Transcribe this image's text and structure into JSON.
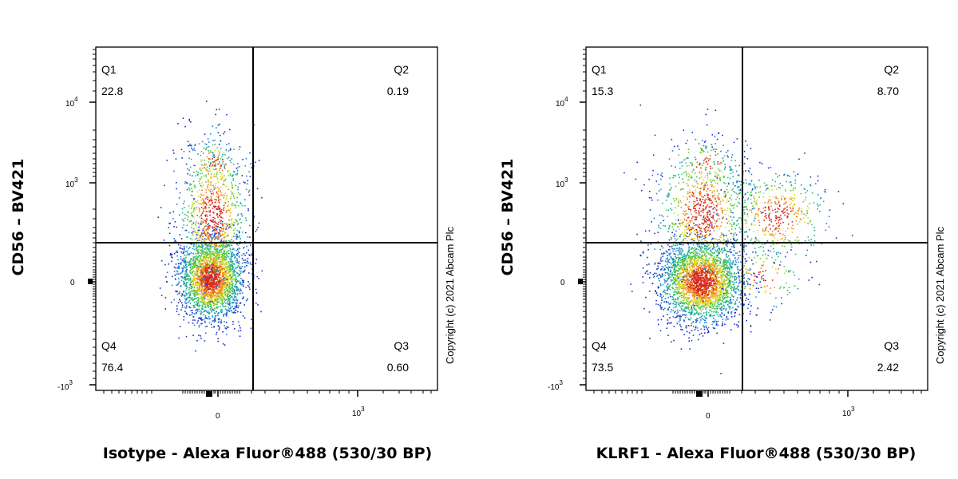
{
  "chart_data": [
    {
      "type": "scatter",
      "xlabel": "Isotype - Alexa Fluor®488 (530/30 BP)",
      "ylabel": "CD56 – BV421",
      "x_ticks": [
        "0",
        "10^3"
      ],
      "y_ticks": [
        "10^4",
        "10^3",
        "0",
        "-10^3"
      ],
      "quadrants": [
        {
          "name": "Q1",
          "value": "22.8"
        },
        {
          "name": "Q2",
          "value": "0.19"
        },
        {
          "name": "Q3",
          "value": "0.60"
        },
        {
          "name": "Q4",
          "value": "76.4"
        }
      ],
      "copyright": "Copyright (c) 2021 Abcam Plc"
    },
    {
      "type": "scatter",
      "xlabel": "KLRF1 - Alexa Fluor®488 (530/30 BP)",
      "ylabel": "CD56 – BV421",
      "x_ticks": [
        "0",
        "10^3"
      ],
      "y_ticks": [
        "10^4",
        "10^3",
        "0",
        "-10^3"
      ],
      "quadrants": [
        {
          "name": "Q1",
          "value": "15.3"
        },
        {
          "name": "Q2",
          "value": "8.70"
        },
        {
          "name": "Q3",
          "value": "2.42"
        },
        {
          "name": "Q4",
          "value": "73.5"
        }
      ],
      "copyright": "Copyright (c) 2021 Abcam Plc"
    }
  ]
}
